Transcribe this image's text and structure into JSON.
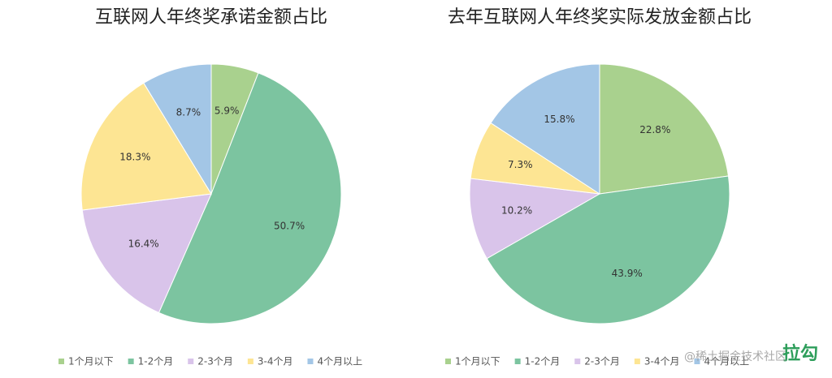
{
  "chart_data": [
    {
      "type": "pie",
      "title": "互联网人年终奖承诺金额占比",
      "categories": [
        "1个月以下",
        "1-2个月",
        "2-3个月",
        "3-4个月",
        "4个月以上"
      ],
      "values": [
        5.9,
        50.7,
        16.4,
        18.3,
        8.7
      ],
      "value_labels": [
        "5.9%",
        "50.7%",
        "16.4%",
        "18.3%",
        "8.7%"
      ],
      "colors": [
        "#a9d18e",
        "#7cc4a0",
        "#d9c4ea",
        "#fde593",
        "#a3c6e6"
      ]
    },
    {
      "type": "pie",
      "title": "去年互联网人年终奖实际发放金额占比",
      "categories": [
        "1个月以下",
        "1-2个月",
        "2-3个月",
        "3-4个月",
        "4个月以上"
      ],
      "values": [
        22.8,
        43.9,
        10.2,
        7.3,
        15.8
      ],
      "value_labels": [
        "22.8%",
        "43.9%",
        "10.2%",
        "7.3%",
        "15.8%"
      ],
      "colors": [
        "#a9d18e",
        "#7cc4a0",
        "#d9c4ea",
        "#fde593",
        "#a3c6e6"
      ]
    }
  ],
  "watermark": {
    "text": "@稀土掘金技术社区",
    "logo": "拉勾"
  }
}
